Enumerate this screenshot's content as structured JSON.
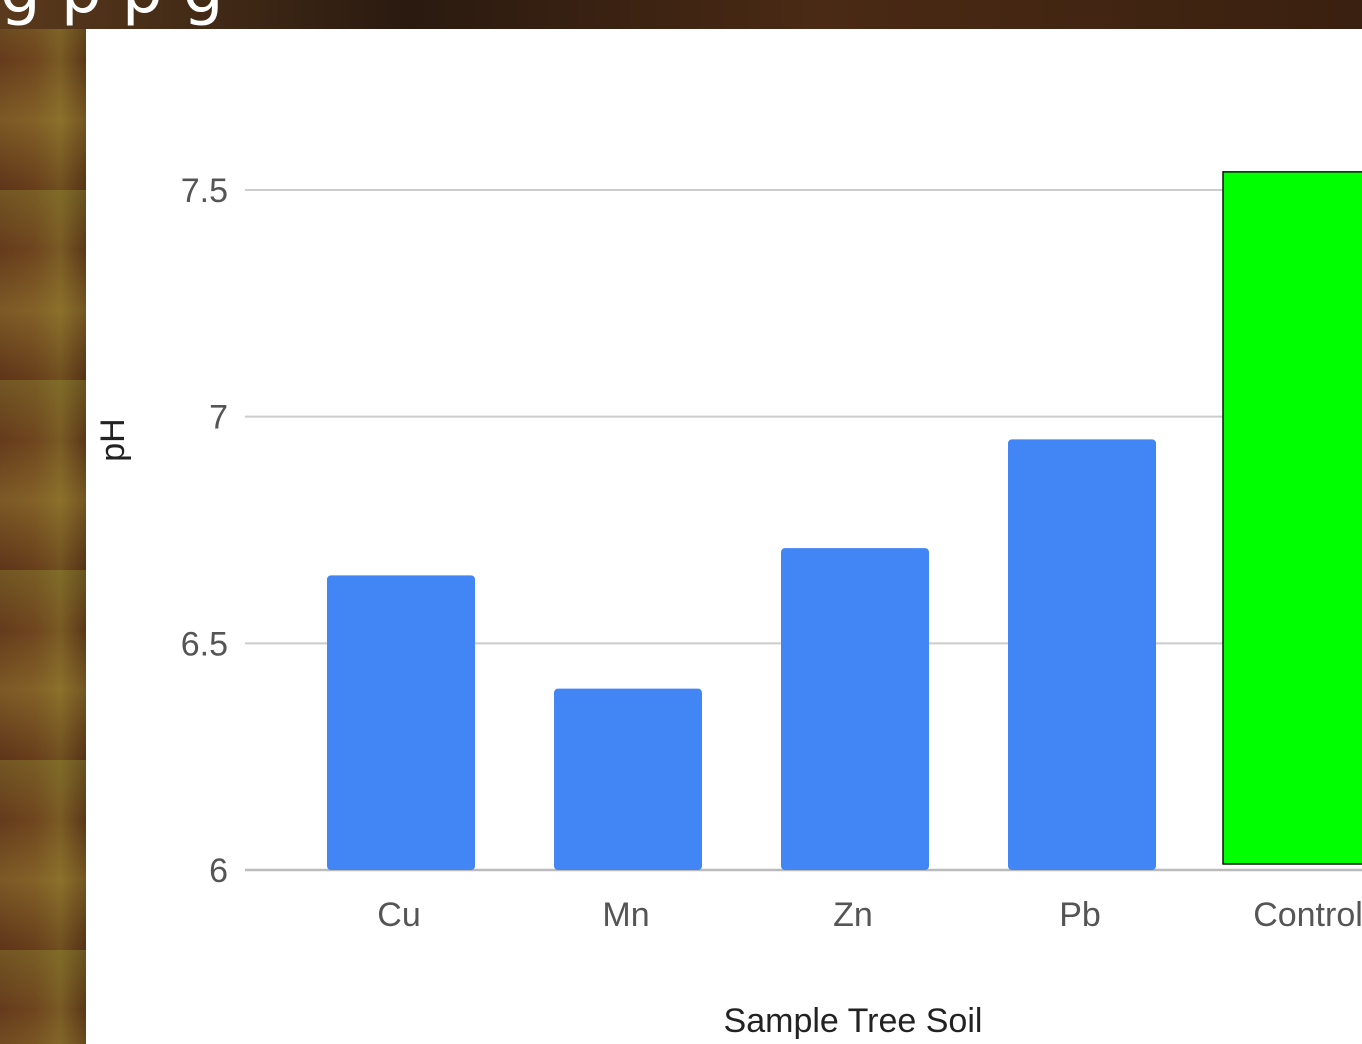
{
  "banner": {
    "title_fragment": "g p                          p      g"
  },
  "chart_data": {
    "type": "bar",
    "categories": [
      "Cu",
      "Mn",
      "Zn",
      "Pb",
      "Control"
    ],
    "values": [
      6.65,
      6.4,
      6.71,
      6.95,
      7.54
    ],
    "bar_colors": [
      "#4285f4",
      "#4285f4",
      "#4285f4",
      "#4285f4",
      "#00ff00"
    ],
    "highlight_color": "#00ff00",
    "series_color": "#4285f4",
    "title": "",
    "xlabel": "Sample Tree Soil",
    "ylabel": "pH",
    "ylim": [
      6,
      7.5
    ],
    "yticks": [
      6,
      6.5,
      7,
      7.5
    ],
    "ytick_labels": [
      "6",
      "6.5",
      "7",
      "7.5"
    ],
    "grid": true,
    "legend": "none"
  }
}
